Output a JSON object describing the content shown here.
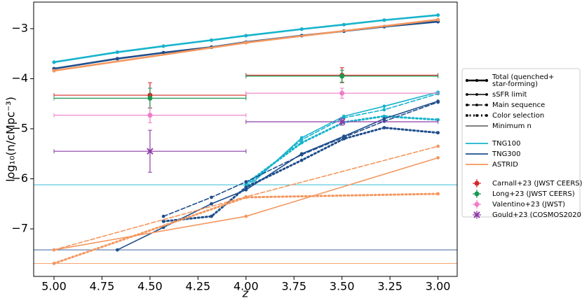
{
  "chart_data": {
    "type": "line",
    "xlabel": "z",
    "ylabel": "log₁₀(n/cMpc⁻³)",
    "xlim": [
      5.106,
      2.9
    ],
    "ylim": [
      -7.95,
      -2.47
    ],
    "xticks": [
      {
        "value": 5,
        "label": "5.00"
      },
      {
        "value": 4.75,
        "label": "4.75"
      },
      {
        "value": 4.5,
        "label": "4.50"
      },
      {
        "value": 4.25,
        "label": "4.25"
      },
      {
        "value": 4,
        "label": "4.00"
      },
      {
        "value": 3.75,
        "label": "3.75"
      },
      {
        "value": 3.5,
        "label": "3.50"
      },
      {
        "value": 3.25,
        "label": "3.25"
      },
      {
        "value": 3,
        "label": "3.00"
      }
    ],
    "yticks": [
      {
        "value": -3,
        "label": "−3"
      },
      {
        "value": -4,
        "label": "−4"
      },
      {
        "value": -5,
        "label": "−5"
      },
      {
        "value": -6,
        "label": "−6"
      },
      {
        "value": -7,
        "label": "−7"
      }
    ],
    "styles": [
      {
        "key": "total",
        "lines": [
          "Total (quenched+",
          "star-forming)"
        ]
      },
      {
        "key": "ssfr",
        "lines": [
          "sSFR limit"
        ]
      },
      {
        "key": "main_sequence",
        "lines": [
          "Main sequence"
        ]
      },
      {
        "key": "color_selection",
        "lines": [
          "Color selection"
        ]
      },
      {
        "key": "min_n",
        "lines": [
          "Minimum n"
        ]
      }
    ],
    "series": [
      {
        "name": "TNG100",
        "color": "#17b3cc",
        "x": [
          5.0,
          4.67,
          4.43,
          4.18,
          4.0,
          3.71,
          3.49,
          3.28,
          3.0
        ],
        "total": [
          -3.67,
          -3.47,
          -3.35,
          -3.23,
          -3.14,
          -3.01,
          -2.92,
          -2.83,
          -2.73
        ],
        "ssfr": [
          null,
          null,
          null,
          null,
          -6.2,
          -5.18,
          -4.75,
          -4.55,
          -4.27
        ],
        "main_sequence": [
          null,
          null,
          null,
          null,
          -6.15,
          -5.22,
          -4.78,
          -4.62,
          -4.3
        ],
        "color_selection": [
          null,
          null,
          null,
          null,
          -6.1,
          -5.28,
          -4.87,
          -4.75,
          -4.82
        ],
        "min_n": -6.12
      },
      {
        "name": "TNG300",
        "color": "#1f4e8c",
        "x": [
          5.0,
          4.67,
          4.43,
          4.18,
          4.0,
          3.71,
          3.49,
          3.28,
          3.0
        ],
        "total": [
          -3.8,
          -3.6,
          -3.48,
          -3.37,
          -3.27,
          -3.14,
          -3.05,
          -2.96,
          -2.86
        ],
        "ssfr": [
          null,
          -7.42,
          -6.97,
          -6.5,
          -6.22,
          -5.5,
          -5.15,
          -4.8,
          -4.45
        ],
        "main_sequence": [
          null,
          null,
          -6.75,
          -6.37,
          -6.06,
          -5.52,
          -5.17,
          -4.85,
          -4.47
        ],
        "color_selection": [
          null,
          null,
          -6.85,
          -6.75,
          -6.17,
          -5.63,
          -5.2,
          -4.98,
          -5.08
        ],
        "min_n": -7.42
      },
      {
        "name": "ASTRID",
        "color": "#f4975e",
        "x": [
          5.0,
          4.0,
          3.0
        ],
        "total": [
          -3.84,
          -3.28,
          -2.82
        ],
        "ssfr": [
          -7.42,
          -6.75,
          -5.58
        ],
        "main_sequence": [
          -7.42,
          -6.36,
          -5.35
        ],
        "color_selection": [
          -7.69,
          -6.37,
          -6.3
        ],
        "min_n": -7.69
      }
    ],
    "observations": [
      {
        "name": "Carnall+23 (JWST CEERS)",
        "color": "#d62728",
        "marker": "circle",
        "x": [
          4.5,
          3.5
        ],
        "x_low": [
          5.0,
          4.0
        ],
        "x_high": [
          4.0,
          3.0
        ],
        "values": [
          -4.33,
          -3.93
        ],
        "yerr": [
          0.25,
          0.15
        ]
      },
      {
        "name": "Long+23 (JWST CEERS)",
        "color": "#1a9850",
        "marker": "circle",
        "x": [
          4.5,
          3.5
        ],
        "x_low": [
          5.0,
          4.0
        ],
        "x_high": [
          4.0,
          3.0
        ],
        "values": [
          -4.39,
          -3.95
        ],
        "yerr": [
          0.2,
          0.12
        ]
      },
      {
        "name": "Valentino+23 (JWST)",
        "color": "#f07cc8",
        "marker": "circle",
        "x": [
          4.5,
          3.5
        ],
        "x_low": [
          5.0,
          4.0
        ],
        "x_high": [
          4.0,
          3.0
        ],
        "values": [
          -4.73,
          -4.29
        ],
        "yerr": [
          0.15,
          0.1
        ]
      },
      {
        "name": "Gould+23 (COSMOS2020)",
        "color": "#8e3ba6",
        "marker": "x",
        "x": [
          4.5,
          3.5
        ],
        "x_low": [
          5.0,
          4.0
        ],
        "x_high": [
          4.0,
          3.0
        ],
        "values": [
          -5.45,
          -4.86
        ],
        "yerr": [
          0.42,
          0.07
        ]
      }
    ]
  }
}
